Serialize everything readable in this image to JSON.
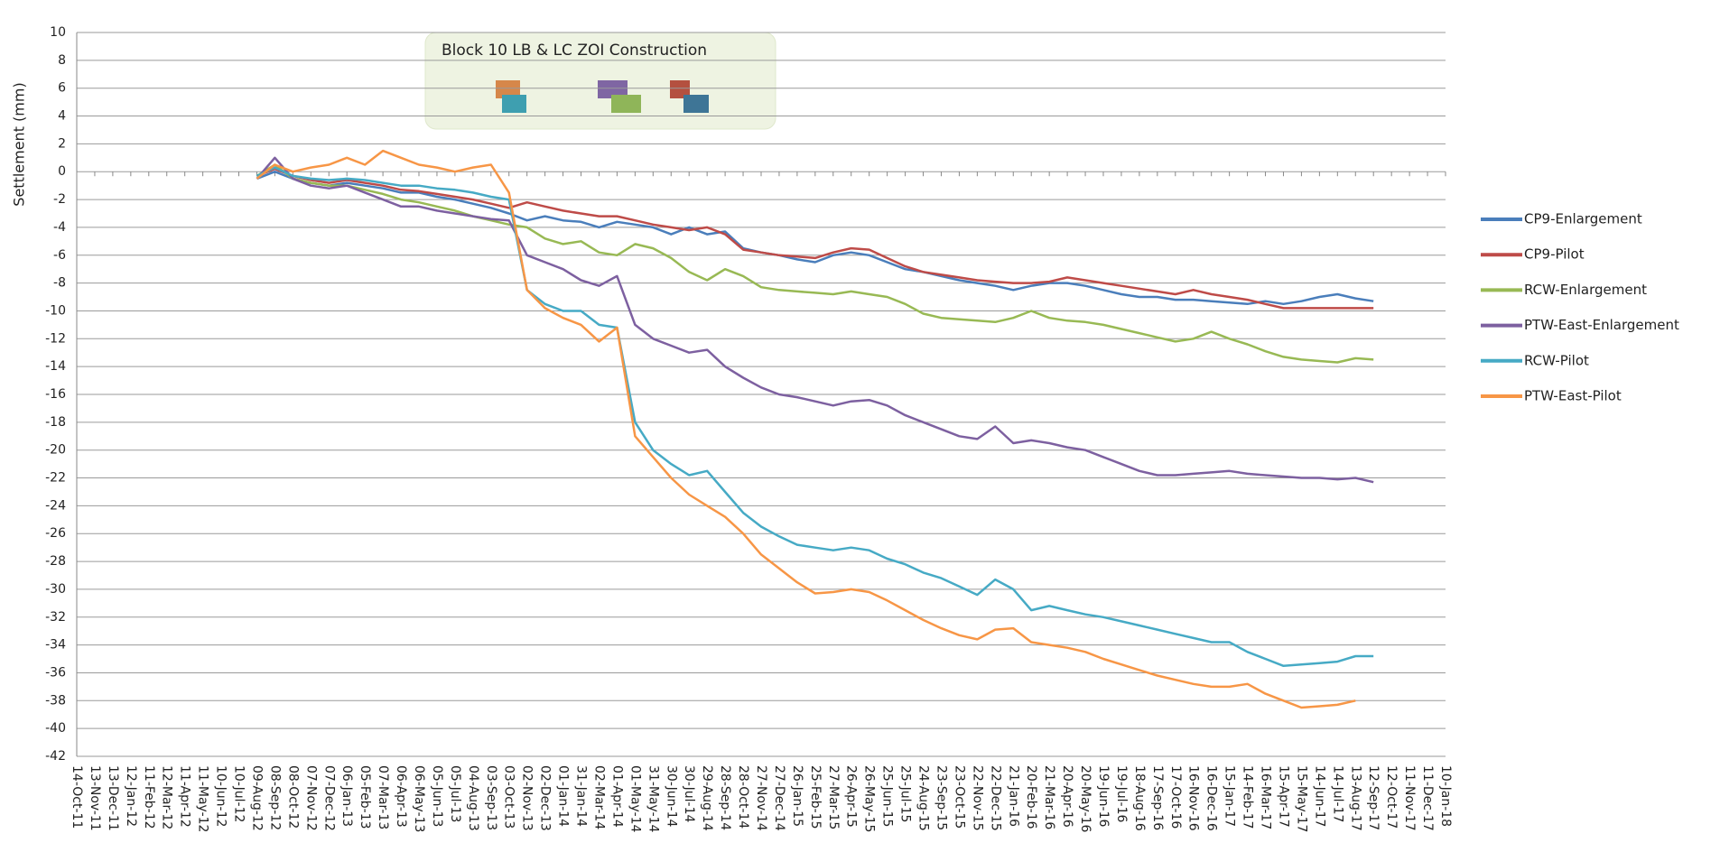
{
  "chart_data": {
    "type": "line",
    "ylabel": "Settlement (mm)",
    "annotation": "Block 10 LB & LC ZOI Construction",
    "categories": [
      "14-Oct-11",
      "13-Nov-11",
      "13-Dec-11",
      "12-Jan-12",
      "11-Feb-12",
      "12-Mar-12",
      "11-Apr-12",
      "11-May-12",
      "10-Jun-12",
      "10-Jul-12",
      "09-Aug-12",
      "08-Sep-12",
      "08-Oct-12",
      "07-Nov-12",
      "07-Dec-12",
      "06-Jan-13",
      "05-Feb-13",
      "07-Mar-13",
      "06-Apr-13",
      "06-May-13",
      "05-Jun-13",
      "05-Jul-13",
      "04-Aug-13",
      "03-Sep-13",
      "03-Oct-13",
      "02-Nov-13",
      "02-Dec-13",
      "01-Jan-14",
      "31-Jan-14",
      "02-Mar-14",
      "01-Apr-14",
      "01-May-14",
      "31-May-14",
      "30-Jun-14",
      "30-Jul-14",
      "29-Aug-14",
      "28-Sep-14",
      "28-Oct-14",
      "27-Nov-14",
      "27-Dec-14",
      "26-Jan-15",
      "25-Feb-15",
      "27-Mar-15",
      "26-Apr-15",
      "26-May-15",
      "25-Jun-15",
      "25-Jul-15",
      "24-Aug-15",
      "23-Sep-15",
      "23-Oct-15",
      "22-Nov-15",
      "22-Dec-15",
      "21-Jan-16",
      "20-Feb-16",
      "21-Mar-16",
      "20-Apr-16",
      "20-May-16",
      "19-Jun-16",
      "19-Jul-16",
      "18-Aug-16",
      "17-Sep-16",
      "17-Oct-16",
      "16-Nov-16",
      "16-Dec-16",
      "15-Jan-17",
      "14-Feb-17",
      "16-Mar-17",
      "15-Apr-17",
      "15-May-17",
      "14-Jun-17",
      "14-Jul-17",
      "13-Aug-17",
      "12-Sep-17",
      "12-Oct-17",
      "11-Nov-17",
      "11-Dec-17",
      "10-Jan-18"
    ],
    "series": [
      {
        "name": "CP9-Enlargement",
        "color": "#4a7ebb",
        "values": [
          null,
          null,
          null,
          null,
          null,
          null,
          null,
          null,
          null,
          null,
          -0.5,
          0,
          -0.5,
          -0.8,
          -1,
          -0.8,
          -1,
          -1.2,
          -1.5,
          -1.5,
          -1.8,
          -2,
          -2.3,
          -2.6,
          -3,
          -3.5,
          -3.2,
          -3.5,
          -3.6,
          -4,
          -3.6,
          -3.8,
          -4,
          -4.5,
          -4,
          -4.5,
          -4.3,
          -5.5,
          -5.8,
          -6,
          -6.3,
          -6.5,
          -6,
          -5.8,
          -6,
          -6.5,
          -7,
          -7.2,
          -7.5,
          -7.8,
          -8,
          -8.2,
          -8.5,
          -8.2,
          -8,
          -8,
          -8.2,
          -8.5,
          -8.8,
          -9,
          -9,
          -9.2,
          -9.2,
          -9.3,
          -9.4,
          -9.5,
          -9.3,
          -9.5,
          -9.3,
          -9,
          -8.8,
          -9.1,
          -9.3,
          null,
          null,
          null,
          null
        ]
      },
      {
        "name": "CP9-Pilot",
        "color": "#be4b48",
        "values": [
          null,
          null,
          null,
          null,
          null,
          null,
          null,
          null,
          null,
          null,
          -0.3,
          0.2,
          -0.3,
          -0.6,
          -0.8,
          -0.6,
          -0.8,
          -1,
          -1.3,
          -1.4,
          -1.6,
          -1.8,
          -2,
          -2.3,
          -2.6,
          -2.2,
          -2.5,
          -2.8,
          -3,
          -3.2,
          -3.2,
          -3.5,
          -3.8,
          -4,
          -4.2,
          -4,
          -4.5,
          -5.6,
          -5.8,
          -6,
          -6.1,
          -6.2,
          -5.8,
          -5.5,
          -5.6,
          -6.2,
          -6.8,
          -7.2,
          -7.4,
          -7.6,
          -7.8,
          -7.9,
          -8,
          -8,
          -7.9,
          -7.6,
          -7.8,
          -8,
          -8.2,
          -8.4,
          -8.6,
          -8.8,
          -8.5,
          -8.8,
          -9,
          -9.2,
          -9.5,
          -9.8,
          -9.8,
          -9.8,
          -9.8,
          -9.8,
          -9.8,
          null,
          null,
          null,
          null
        ]
      },
      {
        "name": "RCW-Enlargement",
        "color": "#98b954",
        "values": [
          null,
          null,
          null,
          null,
          null,
          null,
          null,
          null,
          null,
          null,
          -0.3,
          0.5,
          -0.5,
          -0.8,
          -1,
          -1,
          -1.3,
          -1.6,
          -2,
          -2.2,
          -2.5,
          -2.8,
          -3.2,
          -3.5,
          -3.8,
          -4,
          -4.8,
          -5.2,
          -5,
          -5.8,
          -6,
          -5.2,
          -5.5,
          -6.2,
          -7.2,
          -7.8,
          -7,
          -7.5,
          -8.3,
          -8.5,
          -8.6,
          -8.7,
          -8.8,
          -8.6,
          -8.8,
          -9,
          -9.5,
          -10.2,
          -10.5,
          -10.6,
          -10.7,
          -10.8,
          -10.5,
          -10,
          -10.5,
          -10.7,
          -10.8,
          -11,
          -11.3,
          -11.6,
          -11.9,
          -12.2,
          -12,
          -11.5,
          -12,
          -12.4,
          -12.9,
          -13.3,
          -13.5,
          -13.6,
          -13.7,
          -13.4,
          -13.5,
          null,
          null,
          null,
          null
        ]
      },
      {
        "name": "PTW-East-Enlargement",
        "color": "#7d60a0",
        "values": [
          null,
          null,
          null,
          null,
          null,
          null,
          null,
          null,
          null,
          null,
          -0.5,
          1,
          -0.5,
          -1,
          -1.2,
          -1,
          -1.5,
          -2,
          -2.5,
          -2.5,
          -2.8,
          -3,
          -3.2,
          -3.4,
          -3.5,
          -6,
          -6.5,
          -7,
          -7.8,
          -8.2,
          -7.5,
          -11,
          -12,
          -12.5,
          -13,
          -12.8,
          -14,
          -14.8,
          -15.5,
          -16,
          -16.2,
          -16.5,
          -16.8,
          -16.5,
          -16.4,
          -16.8,
          -17.5,
          -18,
          -18.5,
          -19,
          -19.2,
          -18.3,
          -19.5,
          -19.3,
          -19.5,
          -19.8,
          -20,
          -20.5,
          -21,
          -21.5,
          -21.8,
          -21.8,
          -21.7,
          -21.6,
          -21.5,
          -21.7,
          -21.8,
          -21.9,
          -22,
          -22,
          -22.1,
          -22,
          -22.3,
          null,
          null,
          null,
          null
        ]
      },
      {
        "name": "RCW-Pilot",
        "color": "#46aac5",
        "values": [
          null,
          null,
          null,
          null,
          null,
          null,
          null,
          null,
          null,
          null,
          -0.3,
          0.3,
          -0.3,
          -0.5,
          -0.6,
          -0.5,
          -0.6,
          -0.8,
          -1,
          -1,
          -1.2,
          -1.3,
          -1.5,
          -1.8,
          -2,
          -8.5,
          -9.5,
          -10,
          -10,
          -11,
          -11.2,
          -18,
          -20,
          -21,
          -21.8,
          -21.5,
          -23,
          -24.5,
          -25.5,
          -26.2,
          -26.8,
          -27,
          -27.2,
          -27,
          -27.2,
          -27.8,
          -28.2,
          -28.8,
          -29.2,
          -29.8,
          -30.4,
          -29.3,
          -30,
          -31.5,
          -31.2,
          -31.5,
          -31.8,
          -32,
          -32.3,
          -32.6,
          -32.9,
          -33.2,
          -33.5,
          -33.8,
          -33.8,
          -34.5,
          -35,
          -35.5,
          -35.4,
          -35.3,
          -35.2,
          -34.8,
          -34.8,
          null,
          null,
          null,
          null
        ]
      },
      {
        "name": "PTW-East-Pilot",
        "color": "#f79646",
        "values": [
          null,
          null,
          null,
          null,
          null,
          null,
          null,
          null,
          null,
          null,
          -0.5,
          0.5,
          0,
          0.3,
          0.5,
          1,
          0.5,
          1.5,
          1,
          0.5,
          0.3,
          0,
          0.3,
          0.5,
          -1.5,
          -8.5,
          -9.8,
          -10.5,
          -11,
          -12.2,
          -11.2,
          -19,
          -20.5,
          -22,
          -23.2,
          -24,
          -24.8,
          -26,
          -27.5,
          -28.5,
          -29.5,
          -30.3,
          -30.2,
          -30,
          -30.2,
          -30.8,
          -31.5,
          -32.2,
          -32.8,
          -33.3,
          -33.6,
          -32.9,
          -32.8,
          -33.8,
          -34,
          -34.2,
          -34.5,
          -35,
          -35.4,
          -35.8,
          -36.2,
          -36.5,
          -36.8,
          -37,
          -37,
          -36.8,
          -37.5,
          -38,
          -38.5,
          -38.4,
          -38.3,
          -38,
          null,
          null,
          null,
          null,
          null
        ]
      }
    ],
    "ylim": [
      -42,
      10
    ],
    "yticks": [
      10,
      8,
      6,
      4,
      2,
      0,
      -2,
      -4,
      -6,
      -8,
      -10,
      -12,
      -14,
      -16,
      -18,
      -20,
      -22,
      -24,
      -26,
      -28,
      -30,
      -32,
      -34,
      -36,
      -38,
      -40,
      -42
    ],
    "grid": true,
    "legend": "right"
  }
}
